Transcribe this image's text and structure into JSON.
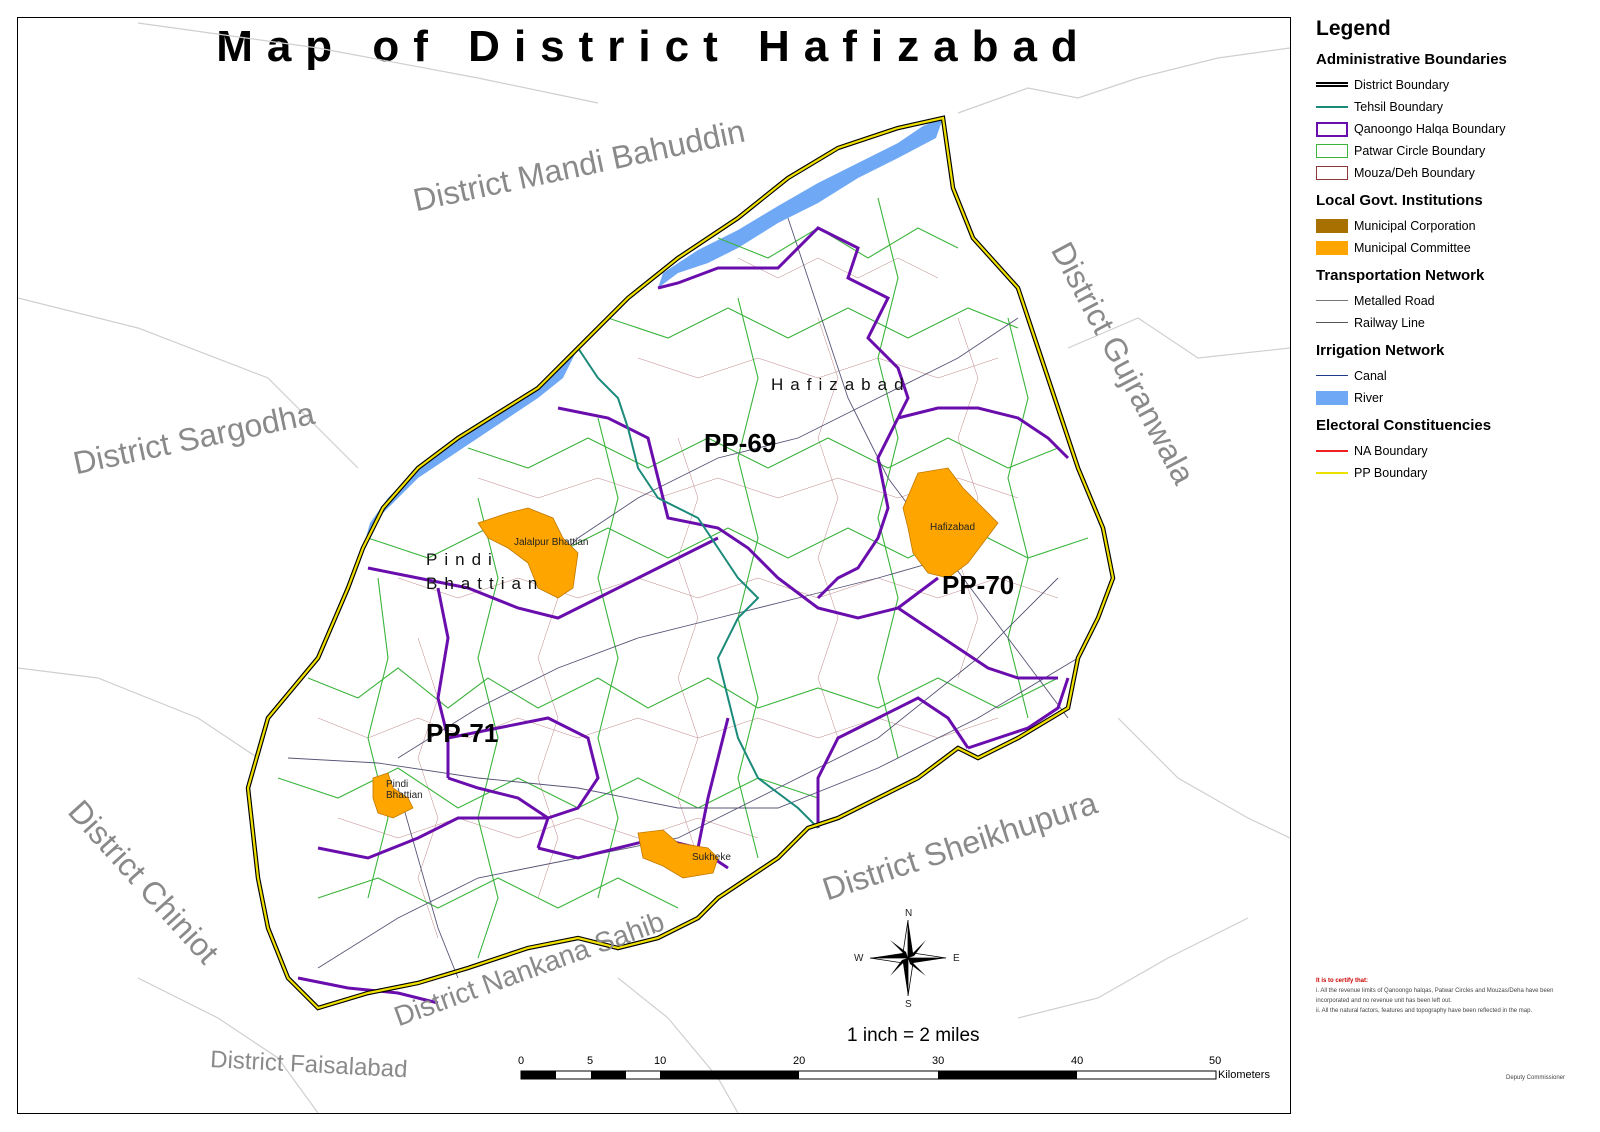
{
  "title": "Map of District Hafizabad",
  "neighbors": {
    "mandi_bahuddin": "District Mandi Bahuddin",
    "gujranwala": "District Gujranwala",
    "sargodha": "District Sargodha",
    "chiniot": "District Chiniot",
    "sheikhupura": "District Sheikhupura",
    "nankana": "District Nankana Sahib",
    "faisalabad": "District Faisalabad"
  },
  "tehsils": {
    "hafizabad": "Hafizabad",
    "pindi_bhattian": "Pindi Bhattian"
  },
  "constituencies": {
    "pp69": "PP-69",
    "pp70": "PP-70",
    "pp71": "PP-71"
  },
  "towns": {
    "jalalpur": "Jalalpur Bhattian",
    "hafizabad": "Hafizabad",
    "pindi": "Pindi Bhattian",
    "sukheke": "Sukheke"
  },
  "compass": {
    "n": "N",
    "s": "S",
    "e": "E",
    "w": "W"
  },
  "scale": {
    "ratio": "1 inch = 2 miles",
    "ticks": [
      "0",
      "5",
      "10",
      "20",
      "30",
      "40",
      "50"
    ],
    "unit": "Kilometers"
  },
  "legend": {
    "heading": "Legend",
    "groups": [
      {
        "title": "Administrative Boundaries",
        "items": [
          {
            "label": "District Boundary",
            "color": "#000000"
          },
          {
            "label": "Tehsil Boundary",
            "color": "#1a8a7a"
          },
          {
            "label": "Qanoongo Halqa Boundary",
            "color": "#6a0dad"
          },
          {
            "label": "Patwar Circle Boundary",
            "color": "#3cb43c"
          },
          {
            "label": "Mouza/Deh Boundary",
            "color": "#8b3a3a"
          }
        ]
      },
      {
        "title": "Local Govt. Institutions",
        "items": [
          {
            "label": "Municipal Corporation",
            "color": "#a87000"
          },
          {
            "label": "Municipal Committee",
            "color": "#ffa500"
          }
        ]
      },
      {
        "title": "Transportation Network",
        "items": [
          {
            "label": "Metalled Road",
            "color": "#777777"
          },
          {
            "label": "Railway Line",
            "color": "#555555"
          }
        ]
      },
      {
        "title": "Irrigation Network",
        "items": [
          {
            "label": "Canal",
            "color": "#1e3a8a"
          },
          {
            "label": "River",
            "color": "#6fa8f5"
          }
        ]
      },
      {
        "title": "Electoral Constituencies",
        "items": [
          {
            "label": "NA Boundary",
            "color": "#ee2222"
          },
          {
            "label": "PP Boundary",
            "color": "#f0e000"
          }
        ]
      }
    ]
  },
  "certificate": {
    "title": "It is to certify that:",
    "lines": [
      "i.   All the revenue limits of Qanoongo halqas, Patwar Circles and Mouzas/Deha have been incorporated and no revenue unit has been left out.",
      "ii.  All the natural factors, features and topography have been reflected in the map."
    ],
    "signature": "Deputy Commissioner"
  }
}
